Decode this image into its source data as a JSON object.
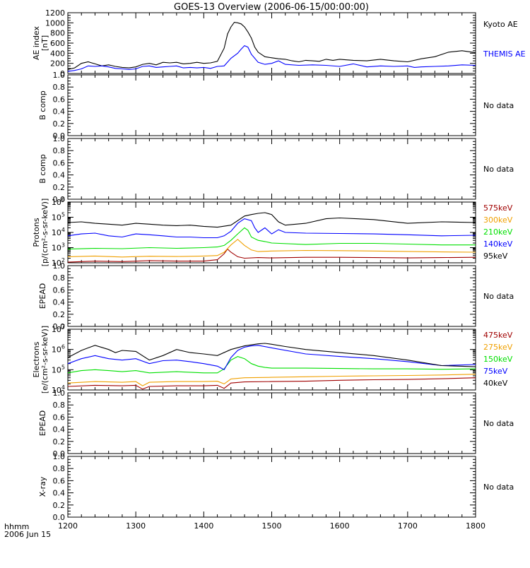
{
  "title": "GOES-13 Overview (2006-06-15/00:00:00)",
  "xaxis": {
    "label_line1": "hhmm",
    "label_line2": "2006 Jun 15",
    "ticks": [
      "1200",
      "1300",
      "1400",
      "1500",
      "1600",
      "1700",
      "1800"
    ],
    "range": [
      1200,
      1800
    ]
  },
  "no_data_text": "No data",
  "colors": {
    "black": "#000000",
    "blue": "#0000ff",
    "green": "#00e000",
    "orange": "#f0a000",
    "red": "#a00000"
  },
  "chart_data": [
    {
      "type": "line",
      "ylabel": [
        "AE index",
        "[nT]"
      ],
      "ylim": [
        0,
        1200
      ],
      "yticks": [
        "0",
        "200",
        "400",
        "600",
        "800",
        "1000",
        "1200"
      ],
      "series": [
        {
          "name": "Kyoto AE",
          "color": "#000000",
          "x": [
            1200,
            1210,
            1220,
            1230,
            1240,
            1250,
            1260,
            1270,
            1280,
            1290,
            1300,
            1310,
            1320,
            1330,
            1340,
            1350,
            1360,
            1370,
            1380,
            1390,
            1400,
            1410,
            1420,
            1430,
            1435,
            1440,
            1445,
            1450,
            1455,
            1460,
            1465,
            1470,
            1475,
            1480,
            1490,
            1500,
            1510,
            1520,
            1530,
            1540,
            1550,
            1560,
            1570,
            1580,
            1590,
            1600,
            1620,
            1640,
            1660,
            1680,
            1700,
            1720,
            1740,
            1760,
            1780,
            1800
          ],
          "y": [
            80,
            110,
            200,
            230,
            190,
            150,
            170,
            140,
            120,
            110,
            130,
            180,
            200,
            170,
            220,
            210,
            220,
            190,
            200,
            220,
            200,
            210,
            240,
            500,
            780,
            920,
            1010,
            1000,
            980,
            920,
            820,
            700,
            520,
            420,
            330,
            310,
            290,
            280,
            250,
            230,
            260,
            250,
            240,
            280,
            260,
            280,
            260,
            250,
            280,
            250,
            230,
            290,
            330,
            420,
            450,
            410
          ]
        },
        {
          "name": "THEMIS AE",
          "color": "#0000ff",
          "x": [
            1200,
            1210,
            1220,
            1230,
            1240,
            1250,
            1260,
            1270,
            1280,
            1290,
            1300,
            1310,
            1320,
            1330,
            1340,
            1350,
            1360,
            1370,
            1380,
            1390,
            1400,
            1410,
            1420,
            1430,
            1440,
            1450,
            1455,
            1460,
            1465,
            1470,
            1475,
            1480,
            1490,
            1500,
            1510,
            1520,
            1540,
            1560,
            1580,
            1600,
            1620,
            1640,
            1660,
            1680,
            1700,
            1710,
            1720,
            1740,
            1760,
            1780,
            1800
          ],
          "y": [
            40,
            60,
            90,
            150,
            140,
            150,
            130,
            100,
            90,
            80,
            90,
            140,
            150,
            120,
            130,
            140,
            150,
            110,
            120,
            110,
            120,
            100,
            140,
            150,
            300,
            400,
            480,
            550,
            520,
            380,
            300,
            220,
            180,
            200,
            250,
            180,
            160,
            170,
            160,
            140,
            190,
            130,
            150,
            140,
            150,
            120,
            130,
            140,
            150,
            170,
            160
          ]
        }
      ],
      "labels_right": [
        {
          "text": "Kyoto AE",
          "color": "#000000"
        },
        {
          "text": "THEMIS AE",
          "color": "#0000ff"
        }
      ]
    },
    {
      "type": "line",
      "ylabel": [
        "B comp"
      ],
      "ylim": [
        0,
        1
      ],
      "yticks": [
        "0.0",
        "0.2",
        "0.4",
        "0.6",
        "0.8",
        "1.0"
      ],
      "series": [],
      "status": "No data"
    },
    {
      "type": "line",
      "ylabel": [
        "B comp"
      ],
      "ylim": [
        0,
        1
      ],
      "yticks": [
        "0.0",
        "0.2",
        "0.4",
        "0.6",
        "0.8",
        "1.0"
      ],
      "series": [],
      "status": "No data"
    },
    {
      "type": "line",
      "yscale": "log",
      "ylabel": [
        "Protons",
        "[p/(cm²-s-sr-keV)]"
      ],
      "ylim": [
        100,
        1000000
      ],
      "yticks": [
        {
          "base": "10",
          "exp": "2",
          "value": 100
        },
        {
          "base": "10",
          "exp": "3",
          "value": 1000
        },
        {
          "base": "10",
          "exp": "4",
          "value": 10000
        },
        {
          "base": "10",
          "exp": "5",
          "value": 100000
        },
        {
          "base": "10",
          "exp": "6",
          "value": 1000000
        }
      ],
      "series": [
        {
          "name": "575keV",
          "color": "#a00000",
          "x": [
            1200,
            1240,
            1280,
            1320,
            1360,
            1400,
            1420,
            1430,
            1435,
            1440,
            1450,
            1460,
            1480,
            1500,
            1550,
            1600,
            1650,
            1700,
            1750,
            1800
          ],
          "y": [
            110,
            130,
            120,
            140,
            130,
            130,
            160,
            400,
            800,
            500,
            250,
            200,
            220,
            210,
            230,
            230,
            220,
            210,
            220,
            230
          ]
        },
        {
          "name": "300keV",
          "color": "#f0a000",
          "x": [
            1200,
            1240,
            1280,
            1320,
            1360,
            1400,
            1420,
            1430,
            1440,
            1450,
            1460,
            1470,
            1480,
            1500,
            1550,
            1600,
            1650,
            1700,
            1750,
            1800
          ],
          "y": [
            250,
            280,
            240,
            270,
            260,
            280,
            300,
            500,
            1500,
            3500,
            1400,
            700,
            550,
            600,
            650,
            630,
            600,
            560,
            520,
            500
          ]
        },
        {
          "name": "210keV",
          "color": "#00e000",
          "x": [
            1200,
            1240,
            1280,
            1320,
            1360,
            1400,
            1420,
            1430,
            1440,
            1450,
            1460,
            1465,
            1470,
            1480,
            1490,
            1500,
            1550,
            1600,
            1650,
            1700,
            1750,
            1800
          ],
          "y": [
            800,
            900,
            850,
            1000,
            900,
            1000,
            1100,
            1400,
            3000,
            8000,
            20000,
            14000,
            5000,
            3000,
            2500,
            2000,
            1600,
            1900,
            1900,
            1700,
            1500,
            1500
          ]
        },
        {
          "name": "140keV",
          "color": "#0000ff",
          "x": [
            1200,
            1220,
            1240,
            1260,
            1280,
            1300,
            1320,
            1340,
            1360,
            1380,
            1400,
            1420,
            1430,
            1440,
            1450,
            1460,
            1470,
            1475,
            1480,
            1490,
            1500,
            1510,
            1520,
            1550,
            1600,
            1650,
            1700,
            1750,
            1800
          ],
          "y": [
            6000,
            8000,
            9000,
            6000,
            5000,
            8000,
            7000,
            6000,
            5000,
            5000,
            4500,
            4500,
            6000,
            12000,
            40000,
            80000,
            60000,
            20000,
            10000,
            20000,
            8000,
            15000,
            10000,
            9000,
            8500,
            8000,
            7000,
            6000,
            6500
          ]
        },
        {
          "name": "95keV",
          "color": "#000000",
          "x": [
            1200,
            1220,
            1240,
            1260,
            1280,
            1300,
            1320,
            1340,
            1360,
            1380,
            1400,
            1420,
            1440,
            1460,
            1470,
            1480,
            1490,
            1500,
            1510,
            1520,
            1550,
            1580,
            1600,
            1650,
            1700,
            1750,
            1800
          ],
          "y": [
            45000,
            50000,
            40000,
            35000,
            30000,
            40000,
            35000,
            30000,
            28000,
            30000,
            25000,
            22000,
            30000,
            120000,
            150000,
            180000,
            200000,
            150000,
            50000,
            30000,
            40000,
            80000,
            90000,
            70000,
            40000,
            50000,
            45000
          ]
        }
      ],
      "labels_right": [
        {
          "text": "575keV",
          "color": "#a00000"
        },
        {
          "text": "300keV",
          "color": "#f0a000"
        },
        {
          "text": "210keV",
          "color": "#00e000"
        },
        {
          "text": "140keV",
          "color": "#0000ff"
        },
        {
          "text": "95keV",
          "color": "#000000"
        }
      ]
    },
    {
      "type": "line",
      "ylabel": [
        "EPEAD"
      ],
      "ylim": [
        0,
        1
      ],
      "yticks": [
        "0.0",
        "0.2",
        "0.4",
        "0.6",
        "0.8",
        "1.0"
      ],
      "series": [],
      "status": "No data"
    },
    {
      "type": "line",
      "yscale": "log",
      "ylabel": [
        "Electrons",
        "[e/(cm²-s-sr-keV)]"
      ],
      "ylim": [
        10000,
        10000000
      ],
      "yticks": [
        {
          "base": "10",
          "exp": "4",
          "value": 10000
        },
        {
          "base": "10",
          "exp": "5",
          "value": 100000
        },
        {
          "base": "10",
          "exp": "6",
          "value": 1000000
        },
        {
          "base": "10",
          "exp": "7",
          "value": 10000000
        }
      ],
      "series": [
        {
          "name": "475keV",
          "color": "#a00000",
          "x": [
            1200,
            1240,
            1280,
            1300,
            1310,
            1320,
            1360,
            1400,
            1420,
            1430,
            1440,
            1460,
            1500,
            1550,
            1600,
            1650,
            1700,
            1750,
            1800
          ],
          "y": [
            15000,
            17000,
            16000,
            17000,
            11000,
            15000,
            16000,
            16000,
            17000,
            12000,
            22000,
            25000,
            26000,
            27000,
            30000,
            32000,
            33000,
            36000,
            40000
          ]
        },
        {
          "name": "275keV",
          "color": "#f0a000",
          "x": [
            1200,
            1240,
            1280,
            1300,
            1310,
            1320,
            1360,
            1400,
            1420,
            1430,
            1440,
            1460,
            1500,
            1550,
            1600,
            1650,
            1700,
            1750,
            1800
          ],
          "y": [
            22000,
            26000,
            24000,
            26000,
            16000,
            24000,
            26000,
            26000,
            27000,
            20000,
            35000,
            40000,
            42000,
            45000,
            48000,
            50000,
            52000,
            55000,
            60000
          ]
        },
        {
          "name": "150keV",
          "color": "#00e000",
          "x": [
            1200,
            1220,
            1240,
            1260,
            1280,
            1300,
            1320,
            1340,
            1360,
            1400,
            1420,
            1430,
            1440,
            1450,
            1460,
            1470,
            1480,
            1490,
            1500,
            1550,
            1600,
            1650,
            1700,
            1750,
            1800
          ],
          "y": [
            70000,
            90000,
            100000,
            90000,
            80000,
            90000,
            70000,
            75000,
            80000,
            70000,
            70000,
            110000,
            300000,
            450000,
            350000,
            200000,
            150000,
            130000,
            120000,
            120000,
            115000,
            110000,
            110000,
            105000,
            110000
          ]
        },
        {
          "name": "75keV",
          "color": "#0000ff",
          "x": [
            1200,
            1220,
            1240,
            1260,
            1280,
            1300,
            1320,
            1340,
            1360,
            1380,
            1400,
            1420,
            1430,
            1440,
            1450,
            1460,
            1470,
            1480,
            1500,
            1550,
            1600,
            1650,
            1700,
            1750,
            1800
          ],
          "y": [
            200000,
            350000,
            500000,
            350000,
            300000,
            350000,
            200000,
            280000,
            300000,
            250000,
            200000,
            150000,
            100000,
            400000,
            900000,
            1300000,
            1500000,
            1600000,
            1200000,
            600000,
            450000,
            350000,
            250000,
            160000,
            180000
          ]
        },
        {
          "name": "40keV",
          "color": "#000000",
          "x": [
            1200,
            1220,
            1240,
            1260,
            1270,
            1280,
            1300,
            1320,
            1340,
            1360,
            1380,
            1400,
            1420,
            1440,
            1460,
            1480,
            1490,
            1500,
            1520,
            1550,
            1600,
            1650,
            1700,
            1750,
            1800
          ],
          "y": [
            400000,
            900000,
            1600000,
            1000000,
            700000,
            900000,
            800000,
            300000,
            500000,
            1000000,
            700000,
            600000,
            500000,
            1000000,
            1500000,
            1900000,
            2000000,
            1800000,
            1400000,
            1000000,
            700000,
            500000,
            300000,
            160000,
            140000
          ]
        }
      ],
      "labels_right": [
        {
          "text": "475keV",
          "color": "#a00000"
        },
        {
          "text": "275keV",
          "color": "#f0a000"
        },
        {
          "text": "150keV",
          "color": "#00e000"
        },
        {
          "text": "75keV",
          "color": "#0000ff"
        },
        {
          "text": "40keV",
          "color": "#000000"
        }
      ]
    },
    {
      "type": "line",
      "ylabel": [
        "EPEAD"
      ],
      "ylim": [
        0,
        1
      ],
      "yticks": [
        "0.0",
        "0.2",
        "0.4",
        "0.6",
        "0.8",
        "1.0"
      ],
      "series": [],
      "status": "No data"
    },
    {
      "type": "line",
      "ylabel": [
        "X-ray"
      ],
      "ylim": [
        0,
        1
      ],
      "yticks": [
        "0.0",
        "0.2",
        "0.4",
        "0.6",
        "0.8",
        "1.0"
      ],
      "series": [],
      "status": "No data"
    }
  ]
}
